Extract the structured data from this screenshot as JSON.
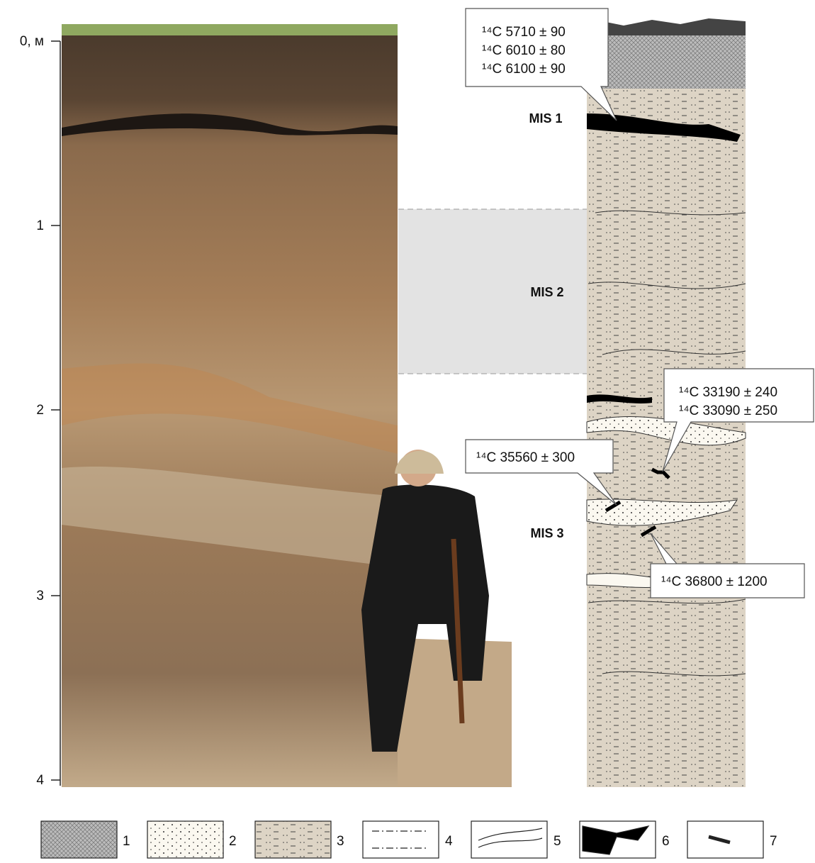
{
  "depth_axis": {
    "ticks": [
      "0, м",
      "1",
      "2",
      "3",
      "4"
    ]
  },
  "mis_labels": [
    "MIS 1",
    "MIS 2",
    "MIS 3"
  ],
  "dates": [
    {
      "lines": [
        "¹⁴C  5710 ± 90",
        "¹⁴C  6010 ± 80",
        "¹⁴C  6100 ± 90"
      ]
    },
    {
      "lines": [
        "¹⁴C  33190 ± 240",
        "¹⁴C  33090 ± 250"
      ]
    },
    {
      "lines": [
        "¹⁴C  35560 ± 300"
      ]
    },
    {
      "lines": [
        "¹⁴C  36800 ± 1200"
      ]
    }
  ],
  "legend": [
    "1",
    "2",
    "3",
    "4",
    "5",
    "6",
    "7"
  ]
}
